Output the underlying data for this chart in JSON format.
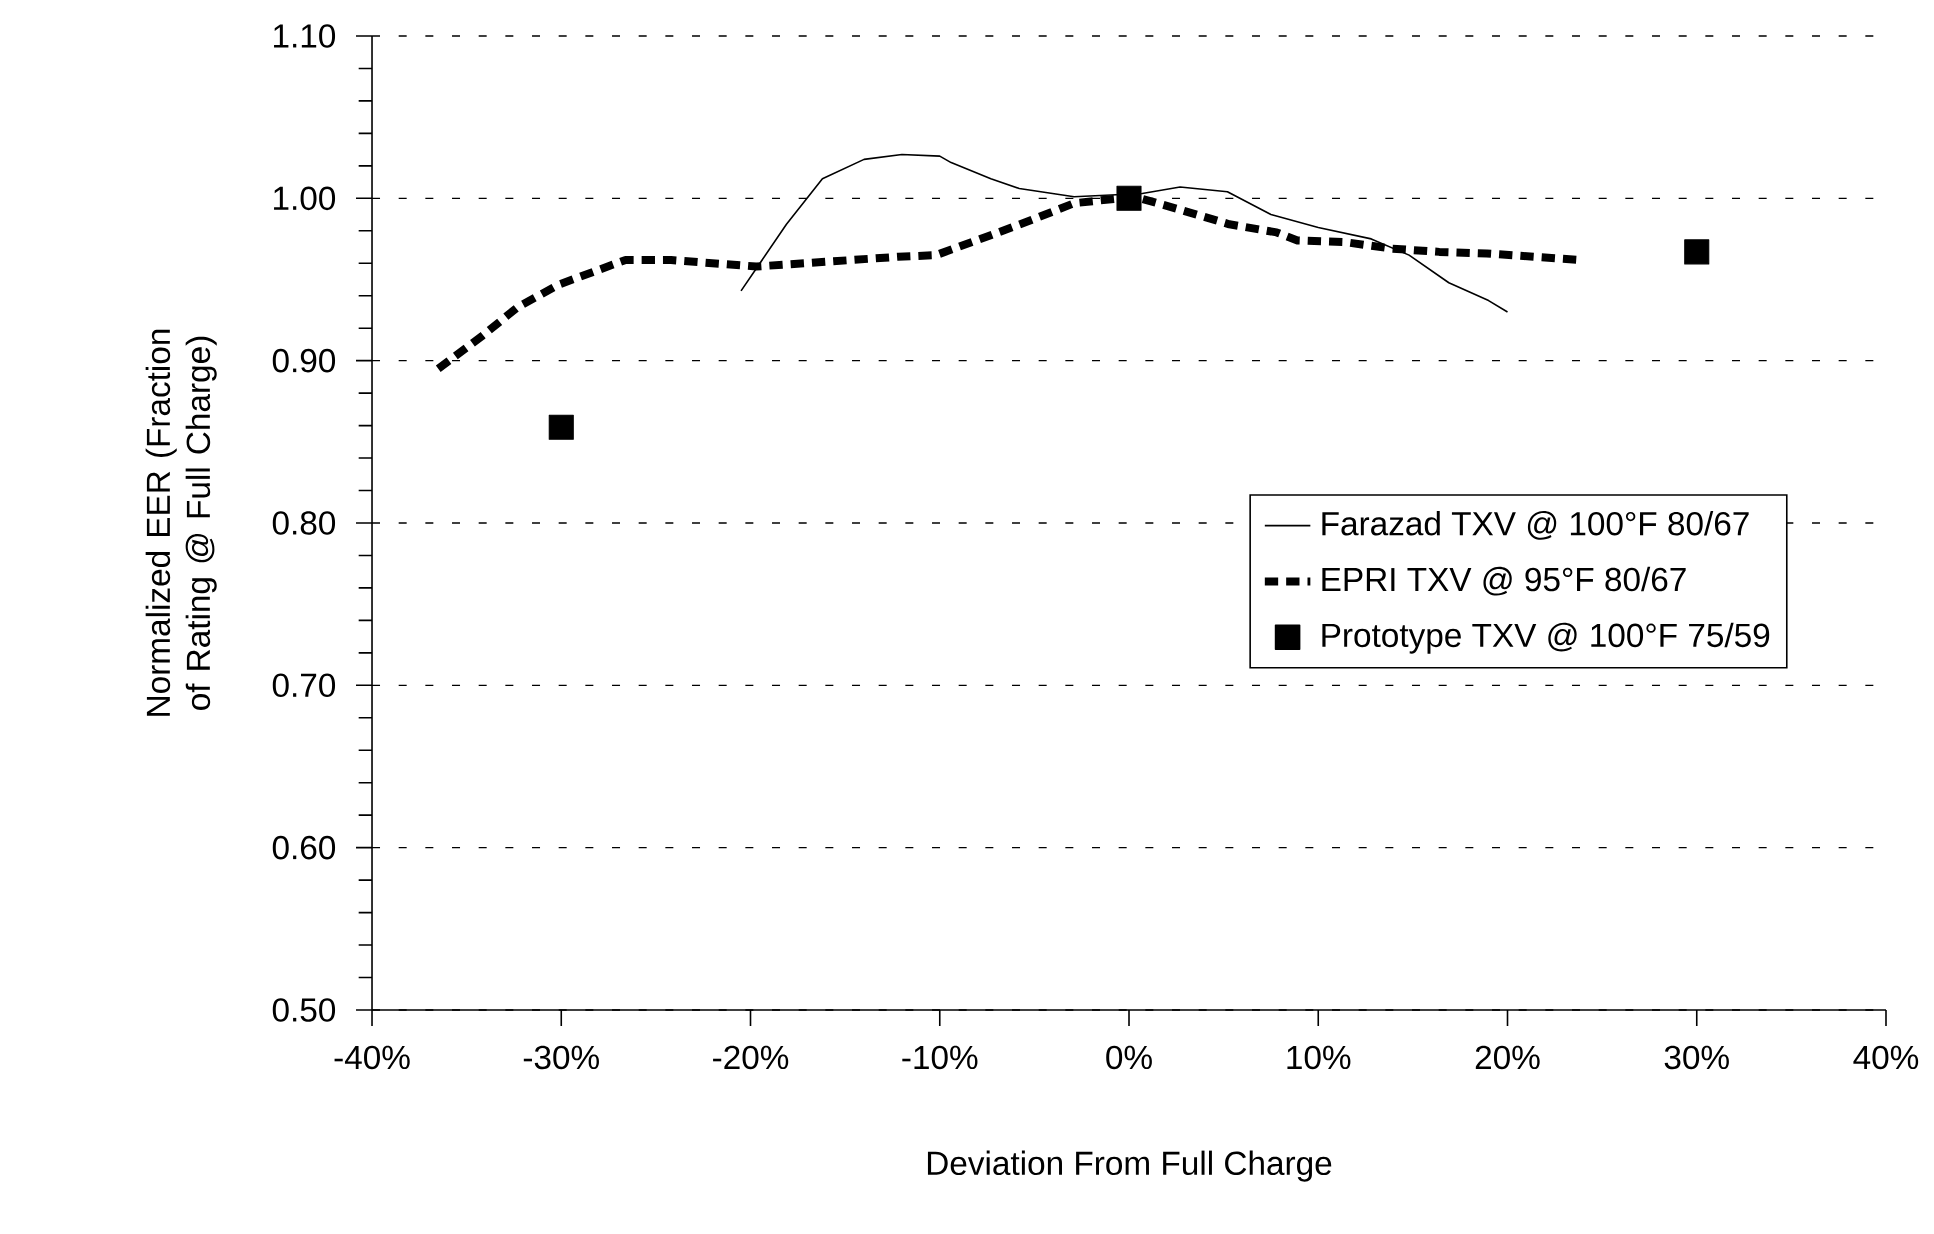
{
  "chart_data": {
    "type": "line",
    "xlabel": "Deviation From Full Charge",
    "ylabel": "Normalized EER (Fraction of Rating @ Full Charge)",
    "xlim": [
      -40,
      40
    ],
    "xticks": [
      {
        "value": -40,
        "label": "-40%"
      },
      {
        "value": -30,
        "label": "-30%"
      },
      {
        "value": -20,
        "label": "-20%"
      },
      {
        "value": -10,
        "label": "-10%"
      },
      {
        "value": 0,
        "label": "0%"
      },
      {
        "value": 10,
        "label": "10%"
      },
      {
        "value": 20,
        "label": "20%"
      },
      {
        "value": 30,
        "label": "30%"
      },
      {
        "value": 40,
        "label": "40%"
      }
    ],
    "ylim": [
      0.5,
      1.1
    ],
    "yticks": [
      {
        "value": 0.5,
        "label": "0.50"
      },
      {
        "value": 0.6,
        "label": "0.60"
      },
      {
        "value": 0.7,
        "label": "0.70"
      },
      {
        "value": 0.8,
        "label": "0.80"
      },
      {
        "value": 0.9,
        "label": "0.90"
      },
      {
        "value": 1.0,
        "label": "1.00"
      },
      {
        "value": 1.1,
        "label": "1.10"
      }
    ],
    "grid": "y",
    "legend": "right",
    "series": [
      {
        "name": "Farazad TXV @ 100°F 80/67",
        "color": "#000000",
        "line_style": "solid",
        "marker": "none",
        "x": [
          -20.5,
          -18.1,
          -16.2,
          -14,
          -12,
          -10,
          -9.4,
          -7.3,
          -5.8,
          -2.9,
          0.7,
          2.7,
          5.2,
          7.5,
          10,
          12.8,
          14.8,
          16.9,
          19,
          20
        ],
        "values": [
          0.943,
          0.984,
          1.012,
          1.024,
          1.027,
          1.026,
          1.022,
          1.012,
          1.006,
          1.001,
          1.003,
          1.007,
          1.004,
          0.99,
          0.982,
          0.975,
          0.965,
          0.948,
          0.937,
          0.93
        ]
      },
      {
        "name": "EPRI TXV @ 95°F 80/67",
        "color": "#000000",
        "line_style": "dashed",
        "marker": "none",
        "x": [
          -36.5,
          -34.2,
          -32.3,
          -30.1,
          -27.3,
          -26.6,
          -24.2,
          -19.7,
          -17.1,
          -12.2,
          -10.2,
          -7.6,
          -5.3,
          -2.9,
          0.3,
          2.7,
          5.3,
          7.8,
          8.9,
          11.4,
          13.9,
          16.4,
          18.9,
          21.4,
          23.9
        ],
        "values": [
          0.895,
          0.915,
          0.933,
          0.947,
          0.959,
          0.962,
          0.962,
          0.958,
          0.96,
          0.964,
          0.965,
          0.976,
          0.986,
          0.997,
          1.001,
          0.993,
          0.984,
          0.979,
          0.974,
          0.973,
          0.969,
          0.967,
          0.966,
          0.964,
          0.962
        ]
      },
      {
        "name": "Prototype TXV @ 100°F 75/59",
        "type": "scatter",
        "color": "#000000",
        "marker": "square",
        "x": [
          -30,
          0,
          30
        ],
        "values": [
          0.859,
          1.0,
          0.967
        ]
      }
    ]
  }
}
